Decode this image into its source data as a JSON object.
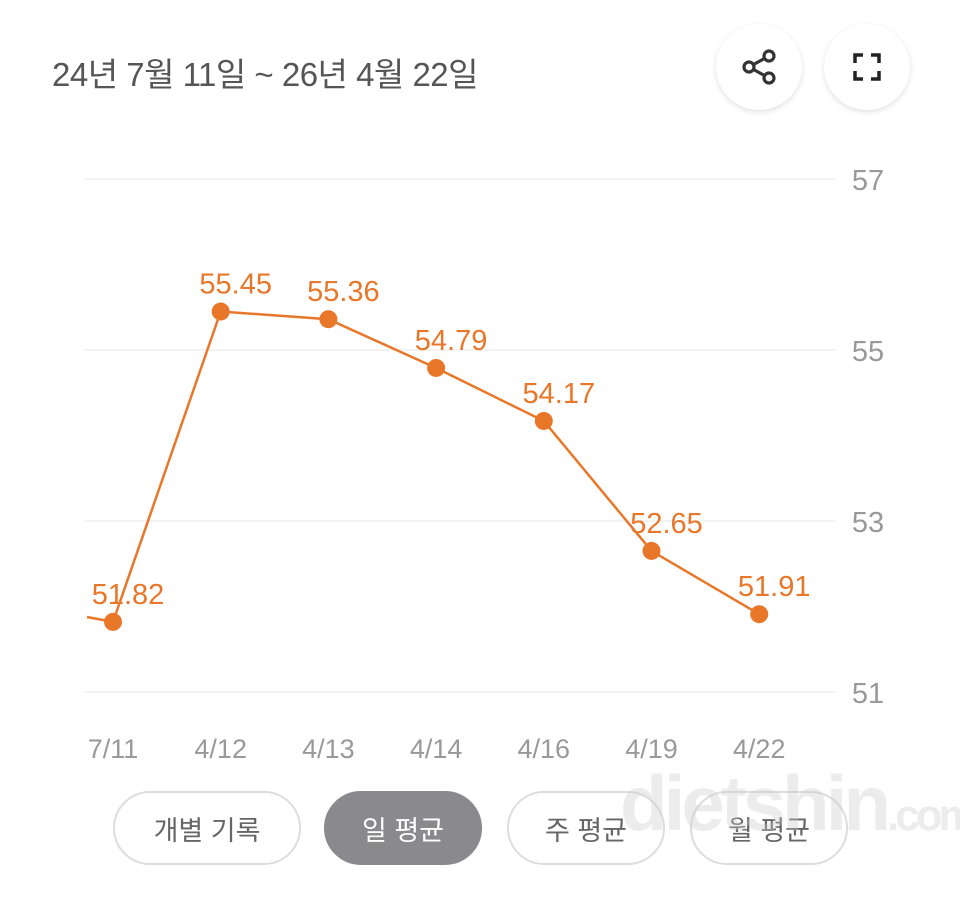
{
  "header": {
    "title": "24년 7월 11일 ~ 26년 4월 22일",
    "share_icon": "share-icon",
    "fullscreen_icon": "fullscreen-icon"
  },
  "chart_data": {
    "type": "line",
    "categories": [
      "7/11",
      "4/12",
      "4/13",
      "4/14",
      "4/16",
      "4/19",
      "4/22"
    ],
    "values": [
      51.82,
      55.45,
      55.36,
      54.79,
      54.17,
      52.65,
      51.91
    ],
    "data_labels": [
      "51.82",
      "55.45",
      "55.36",
      "54.79",
      "54.17",
      "52.65",
      "51.91"
    ],
    "yticks": [
      "57",
      "55",
      "53",
      "51"
    ],
    "ylim": [
      51,
      57
    ],
    "y_axis_side": "right",
    "grid": true,
    "color": "#e8772a"
  },
  "tabs": [
    {
      "label": "개별 기록",
      "active": false
    },
    {
      "label": "일 평균",
      "active": true
    },
    {
      "label": "주 평균",
      "active": false
    },
    {
      "label": "월 평균",
      "active": false
    }
  ],
  "watermark": "dietshin.com"
}
